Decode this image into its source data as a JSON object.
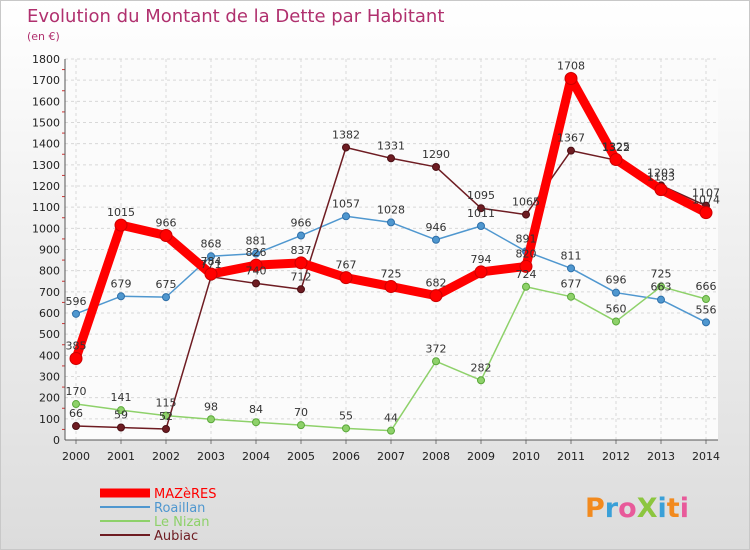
{
  "chart_data": {
    "type": "line",
    "title": "Evolution du Montant de la Dette par Habitant",
    "subtitle": "(en €)",
    "xlabel": "",
    "ylabel": "",
    "x": [
      "2000",
      "2001",
      "2002",
      "2003",
      "2004",
      "2005",
      "2006",
      "2007",
      "2008",
      "2009",
      "2010",
      "2011",
      "2012",
      "2013",
      "2014"
    ],
    "ylim": [
      0,
      1800
    ],
    "yticks": [
      0,
      100,
      200,
      300,
      400,
      500,
      600,
      700,
      800,
      900,
      1000,
      1100,
      1200,
      1300,
      1400,
      1500,
      1600,
      1700,
      1800
    ],
    "grid": true,
    "legend_position": "bottom-left",
    "series": [
      {
        "name": "MAZèRES",
        "color": "#ff0000",
        "values": [
          385,
          1015,
          966,
          784,
          826,
          837,
          767,
          725,
          682,
          794,
          820,
          1708,
          1325,
          1183,
          1074
        ]
      },
      {
        "name": "Roaillan",
        "color": "#4f97cf",
        "values": [
          596,
          679,
          675,
          868,
          881,
          966,
          1057,
          1028,
          946,
          1011,
          891,
          811,
          696,
          663,
          556
        ]
      },
      {
        "name": "Le Nizan",
        "color": "#8ed16a",
        "values": [
          170,
          141,
          115,
          98,
          84,
          70,
          55,
          44,
          372,
          282,
          724,
          677,
          560,
          725,
          666
        ]
      },
      {
        "name": "Aubiac",
        "color": "#6e1c22",
        "values": [
          66,
          59,
          52,
          771,
          740,
          712,
          1382,
          1331,
          1290,
          1095,
          1065,
          1367,
          1322,
          1203,
          1107
        ]
      }
    ],
    "data_labels": [
      {
        "series": 0,
        "labels": [
          "385",
          "1015",
          "966",
          "784",
          "826",
          "837",
          "767",
          "725",
          "682",
          "794",
          "820",
          "1708",
          "1325",
          "1183",
          "1074"
        ]
      },
      {
        "series": 1,
        "labels": [
          "596",
          "679",
          "675",
          "868",
          "881",
          "966",
          "1057",
          "1028",
          "946",
          "1011",
          "891",
          "811",
          "696",
          "663",
          "556"
        ]
      },
      {
        "series": 2,
        "labels": [
          "170",
          "141",
          "115",
          "98",
          "84",
          "70",
          "55",
          "44",
          "372",
          "282",
          "724",
          "677",
          "560",
          "725",
          "666"
        ]
      },
      {
        "series": 3,
        "labels": [
          "66",
          "59",
          "52",
          "771",
          "740",
          "712",
          "1382",
          "1331",
          "1290",
          "1095",
          "1065",
          "1367",
          "1322",
          "1203",
          "1107"
        ]
      }
    ]
  },
  "brand": {
    "logo_text": "ProXiti"
  }
}
